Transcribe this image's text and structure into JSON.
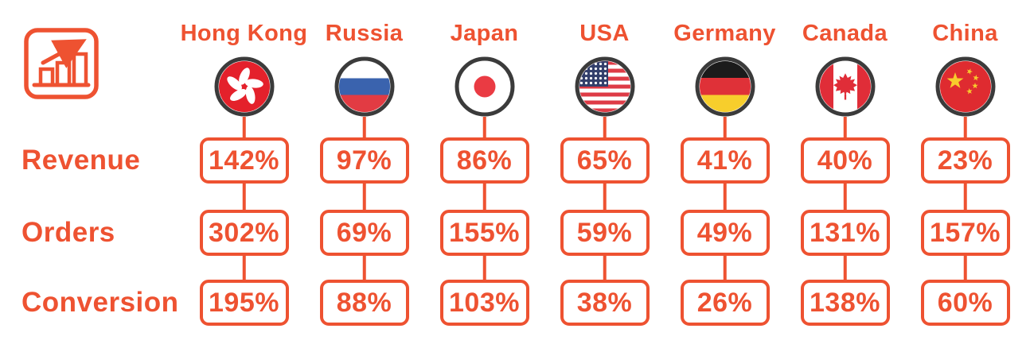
{
  "colors": {
    "accent": "#EE5231",
    "flag_ring": "#3B3B3B",
    "box_background": "#FFFFFF"
  },
  "icon": {
    "name": "growth-bar-chart"
  },
  "columns": [
    {
      "label": "Hong Kong",
      "flag": "hk"
    },
    {
      "label": "Russia",
      "flag": "ru"
    },
    {
      "label": "Japan",
      "flag": "jp"
    },
    {
      "label": "USA",
      "flag": "us"
    },
    {
      "label": "Germany",
      "flag": "de"
    },
    {
      "label": "Canada",
      "flag": "ca"
    },
    {
      "label": "China",
      "flag": "cn"
    }
  ],
  "rows": [
    {
      "label": "Revenue",
      "values": [
        "142%",
        "97%",
        "86%",
        "65%",
        "41%",
        "40%",
        "23%"
      ]
    },
    {
      "label": "Orders",
      "values": [
        "302%",
        "69%",
        "155%",
        "59%",
        "49%",
        "131%",
        "157%"
      ]
    },
    {
      "label": "Conversion",
      "values": [
        "195%",
        "88%",
        "103%",
        "38%",
        "26%",
        "138%",
        "60%"
      ]
    }
  ],
  "chart_data": {
    "type": "table",
    "title": "",
    "categories": [
      "Hong Kong",
      "Russia",
      "Japan",
      "USA",
      "Germany",
      "Canada",
      "China"
    ],
    "series": [
      {
        "name": "Revenue",
        "unit": "%",
        "values": [
          142,
          97,
          86,
          65,
          41,
          40,
          23
        ]
      },
      {
        "name": "Orders",
        "unit": "%",
        "values": [
          302,
          69,
          155,
          59,
          49,
          131,
          157
        ]
      },
      {
        "name": "Conversion",
        "unit": "%",
        "values": [
          195,
          88,
          103,
          38,
          26,
          138,
          60
        ]
      }
    ],
    "layout": "countries as columns with circular flag icons, metrics as rows, values in rounded outlined boxes linked by vertical connector lines"
  }
}
